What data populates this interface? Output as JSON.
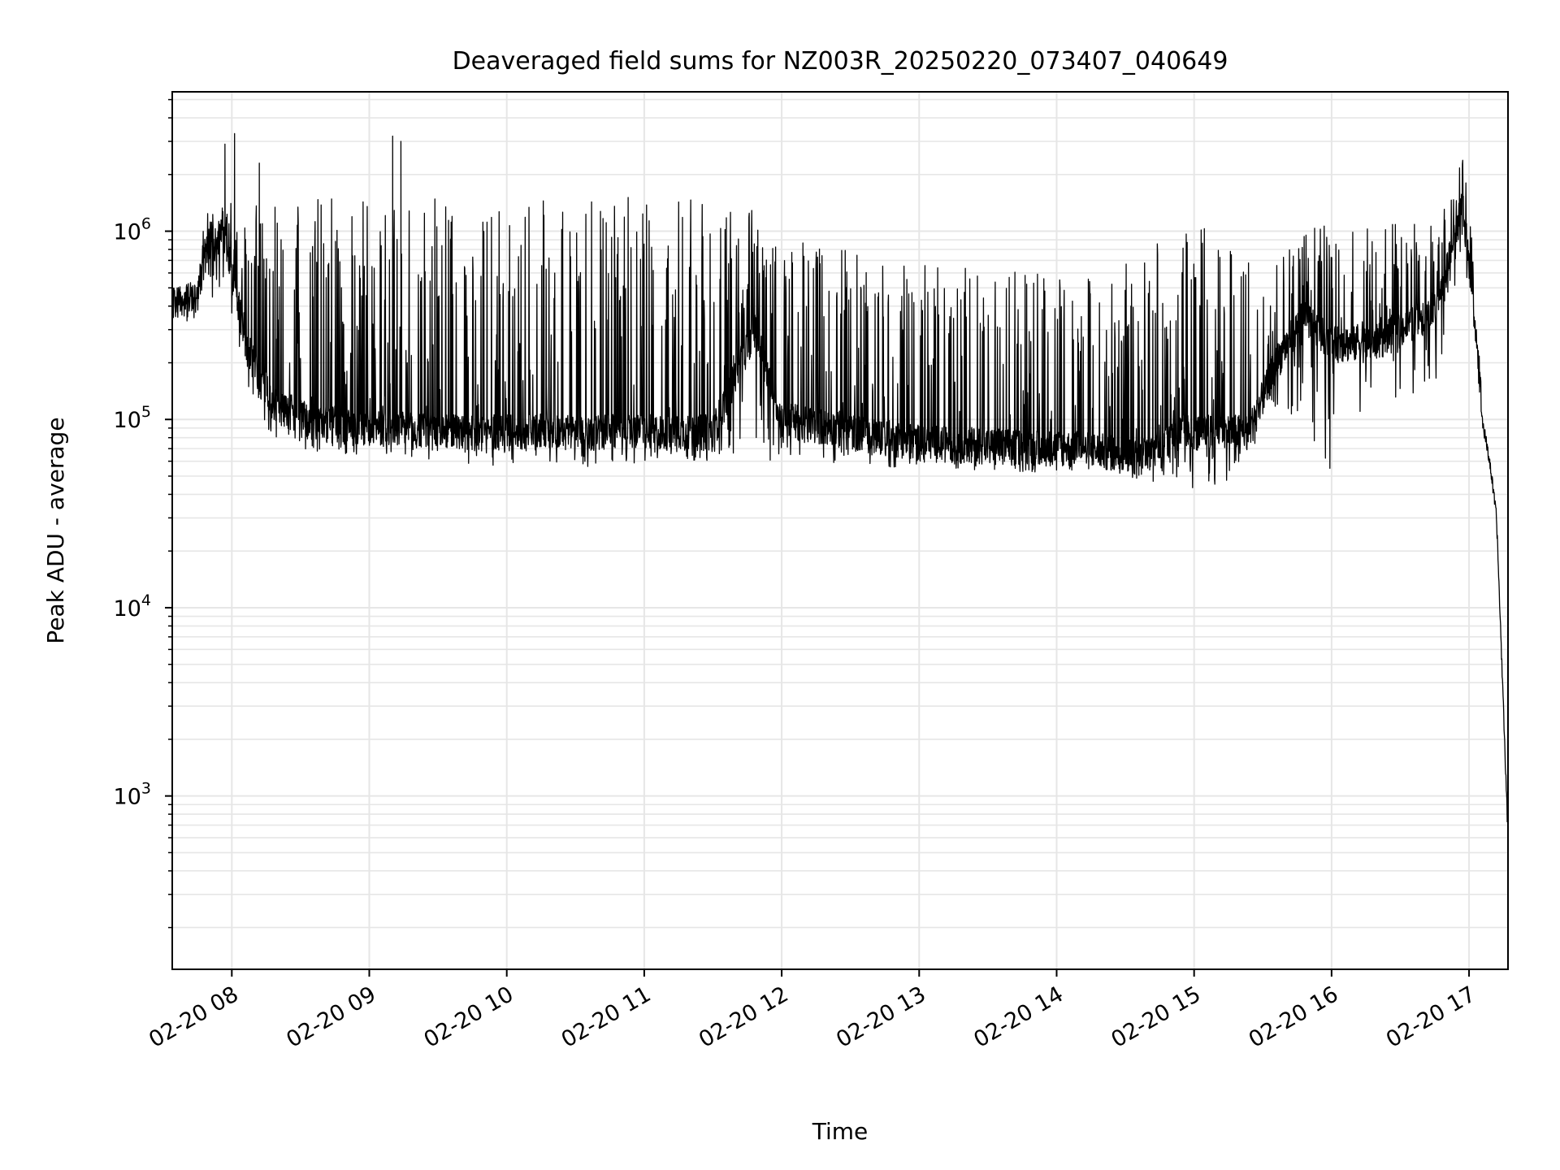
{
  "chart_data": {
    "type": "line",
    "title": "Deaveraged field sums for NZ003R_20250220_073407_040649",
    "xlabel": "Time",
    "ylabel": "Peak ADU - average",
    "x_ticks": [
      "02-20 08",
      "02-20 09",
      "02-20 10",
      "02-20 11",
      "02-20 12",
      "02-20 13",
      "02-20 14",
      "02-20 15",
      "02-20 16",
      "02-20 17"
    ],
    "y_tick_exponents": [
      3,
      4,
      5,
      6
    ],
    "y_tick_base": "10",
    "xlim": [
      "2025-02-20 07:34",
      "2025-02-20 17:17"
    ],
    "ylim": [
      120,
      5500000
    ],
    "y_scale": "log",
    "grid": true,
    "line_color": "#000000",
    "grid_color": "#e6e6e6",
    "series": [
      {
        "envelope": {
          "x_hours": [
            7.57,
            7.75,
            7.8,
            7.95,
            8.1,
            8.3,
            8.6,
            9.0,
            9.5,
            10.0,
            10.5,
            11.0,
            11.5,
            11.8,
            12.0,
            12.5,
            13.0,
            13.5,
            14.0,
            14.3,
            14.6,
            14.9,
            15.2,
            15.4,
            15.6,
            15.8,
            16.0,
            16.3,
            16.6,
            16.8,
            16.95,
            17.0,
            17.05,
            17.1,
            17.15,
            17.2,
            17.25,
            17.28
          ],
          "base": [
            400000,
            420000,
            800000,
            900000,
            250000,
            120000,
            95000,
            90000,
            85000,
            85000,
            85000,
            85000,
            85000,
            300000,
            100000,
            85000,
            75000,
            72000,
            70000,
            68000,
            62000,
            85000,
            85000,
            85000,
            200000,
            350000,
            250000,
            250000,
            320000,
            450000,
            1400000,
            700000,
            300000,
            95000,
            60000,
            30000,
            3000,
            700
          ],
          "peak": [
            600000,
            550000,
            1300000,
            1400000,
            1450000,
            1450000,
            1500000,
            1500000,
            1500000,
            1450000,
            1500000,
            1550000,
            1500000,
            1300000,
            900000,
            800000,
            700000,
            650000,
            600000,
            600000,
            800000,
            1000000,
            1100000,
            700000,
            800000,
            1000000,
            1100000,
            1100000,
            1100000,
            1200000,
            2800000,
            1500000,
            500000,
            95000,
            60000,
            30000,
            3000,
            700
          ],
          "trough": [
            330000,
            350000,
            500000,
            200000,
            160000,
            75000,
            68000,
            62000,
            58000,
            55000,
            55000,
            58000,
            60000,
            60000,
            58000,
            56000,
            55000,
            53000,
            52000,
            55000,
            48000,
            42000,
            45000,
            60000,
            100000,
            80000,
            50000,
            100000,
            130000,
            150000,
            700000,
            500000,
            250000,
            80000,
            55000,
            28000,
            2500,
            600
          ]
        },
        "spikes": [
          {
            "x_hours": 7.95,
            "value": 2900000
          },
          {
            "x_hours": 8.02,
            "value": 3300000
          },
          {
            "x_hours": 8.2,
            "value": 2300000
          },
          {
            "x_hours": 9.17,
            "value": 3200000
          },
          {
            "x_hours": 9.23,
            "value": 3000000
          }
        ]
      }
    ]
  }
}
